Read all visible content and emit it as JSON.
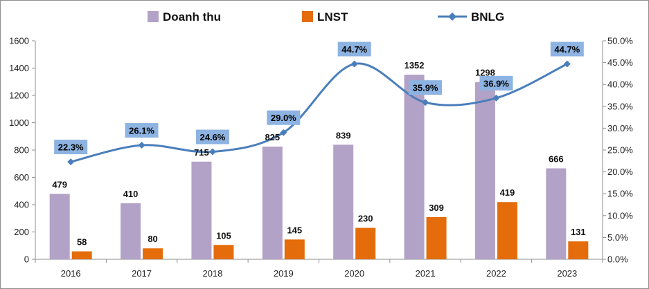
{
  "chart_data": {
    "type": "bar",
    "categories": [
      "2016",
      "2017",
      "2018",
      "2019",
      "2020",
      "2021",
      "2022",
      "2023"
    ],
    "series": [
      {
        "name": "Doanh thu",
        "kind": "bar",
        "axis": "left",
        "color": "#B3A2C7",
        "values": [
          479,
          410,
          715,
          825,
          839,
          1352,
          1298,
          666
        ],
        "labels": [
          "479",
          "410",
          "715",
          "825",
          "839",
          "1352",
          "1298",
          "666"
        ]
      },
      {
        "name": "LNST",
        "kind": "bar",
        "axis": "left",
        "color": "#E46C0A",
        "values": [
          58,
          80,
          105,
          145,
          230,
          309,
          419,
          131
        ],
        "labels": [
          "58",
          "80",
          "105",
          "145",
          "230",
          "309",
          "419",
          "131"
        ]
      },
      {
        "name": "BNLG",
        "kind": "line",
        "axis": "right",
        "color": "#4A7EBB",
        "values": [
          22.3,
          26.1,
          24.6,
          29.0,
          44.7,
          35.9,
          36.9,
          44.7
        ],
        "labels": [
          "22.3%",
          "26.1%",
          "24.6%",
          "29.0%",
          "44.7%",
          "35.9%",
          "36.9%",
          "44.7%"
        ]
      }
    ],
    "y_left": {
      "min": 0,
      "max": 1600,
      "step": 200,
      "ticks": [
        "0",
        "200",
        "400",
        "600",
        "800",
        "1000",
        "1200",
        "1400",
        "1600"
      ]
    },
    "y_right": {
      "min": 0,
      "max": 50,
      "step": 5,
      "ticks": [
        "0.0%",
        "5.0%",
        "10.0%",
        "15.0%",
        "20.0%",
        "25.0%",
        "30.0%",
        "35.0%",
        "40.0%",
        "45.0%",
        "50.0%"
      ]
    },
    "legend": {
      "position": "top-center",
      "items": [
        {
          "label": "Doanh thu",
          "color": "#B3A2C7",
          "shape": "square"
        },
        {
          "label": "LNST",
          "color": "#E46C0A",
          "shape": "square"
        },
        {
          "label": "BNLG",
          "color": "#4A7EBB",
          "shape": "line-diamond"
        }
      ]
    },
    "grid": false,
    "label_box_color": "#8DB3E2"
  }
}
